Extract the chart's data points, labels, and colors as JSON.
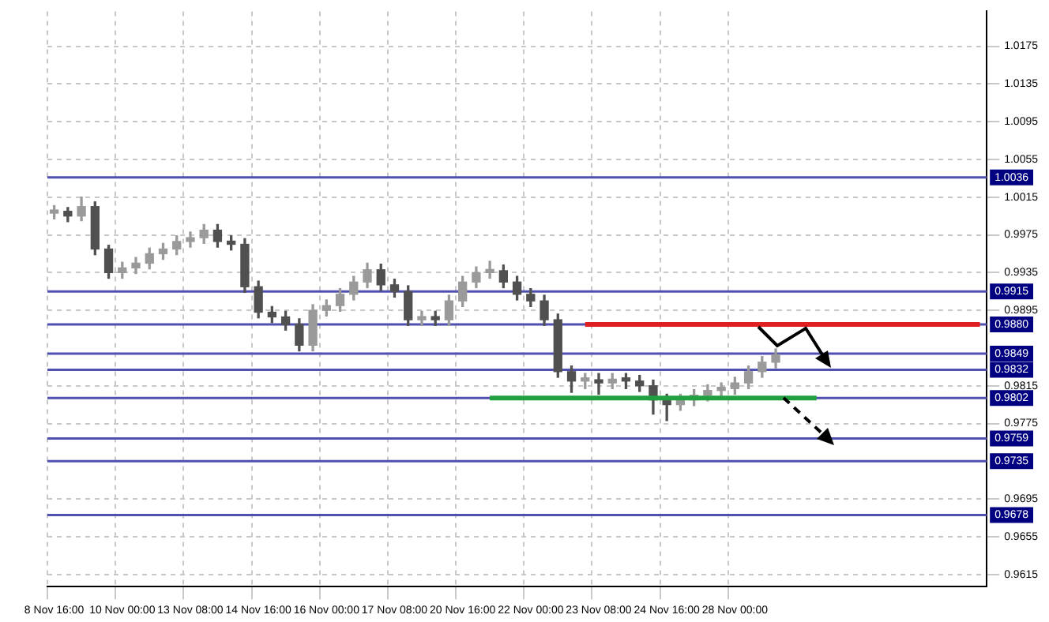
{
  "chart_data": {
    "type": "candlestick",
    "categories": [
      "8 Nov 16:00",
      null,
      null,
      null,
      null,
      "10 Nov 00:00",
      null,
      null,
      null,
      null,
      "13 Nov 08:00",
      null,
      null,
      null,
      null,
      "14 Nov 16:00",
      null,
      null,
      null,
      null,
      "16 Nov 00:00",
      null,
      null,
      null,
      null,
      "17 Nov 08:00",
      null,
      null,
      null,
      null,
      "20 Nov 16:00",
      null,
      null,
      null,
      null,
      "22 Nov 00:00",
      null,
      null,
      null,
      null,
      "23 Nov 08:00",
      null,
      null,
      null,
      null,
      "24 Nov 16:00",
      null,
      null,
      null,
      null,
      "28 Nov 00:00",
      null,
      null,
      null,
      null,
      null,
      null,
      null,
      null,
      null,
      null,
      null,
      null,
      null,
      null,
      null,
      null,
      null,
      null
    ],
    "ohlc": [
      [
        0.9998,
        1.0006,
        0.9992,
        1.0
      ],
      [
        1.0,
        1.0004,
        0.9989,
        0.9995
      ],
      [
        0.9995,
        1.0015,
        0.999,
        1.0005
      ],
      [
        1.0005,
        1.001,
        0.9954,
        0.996
      ],
      [
        0.996,
        0.9964,
        0.9929,
        0.9935
      ],
      [
        0.9935,
        0.9946,
        0.9929,
        0.994
      ],
      [
        0.994,
        0.9951,
        0.9934,
        0.9945
      ],
      [
        0.9945,
        0.9961,
        0.9939,
        0.9955
      ],
      [
        0.9955,
        0.9966,
        0.9949,
        0.996
      ],
      [
        0.996,
        0.9974,
        0.9954,
        0.9968
      ],
      [
        0.9968,
        0.9978,
        0.9962,
        0.9972
      ],
      [
        0.9972,
        0.9986,
        0.9966,
        0.998
      ],
      [
        0.998,
        0.9986,
        0.9962,
        0.9968
      ],
      [
        0.9968,
        0.9974,
        0.9959,
        0.9965
      ],
      [
        0.9965,
        0.9971,
        0.9914,
        0.992
      ],
      [
        0.992,
        0.9926,
        0.9887,
        0.9893
      ],
      [
        0.9893,
        0.9899,
        0.9882,
        0.9888
      ],
      [
        0.9888,
        0.9894,
        0.9874,
        0.988
      ],
      [
        0.988,
        0.9886,
        0.9852,
        0.9858
      ],
      [
        0.9858,
        0.9901,
        0.9852,
        0.9895
      ],
      [
        0.9895,
        0.9906,
        0.9889,
        0.99
      ],
      [
        0.99,
        0.9918,
        0.9894,
        0.9912
      ],
      [
        0.9912,
        0.9931,
        0.9906,
        0.9925
      ],
      [
        0.9925,
        0.9945,
        0.9919,
        0.9938
      ],
      [
        0.9938,
        0.9944,
        0.9916,
        0.9922
      ],
      [
        0.9922,
        0.9928,
        0.9909,
        0.9915
      ],
      [
        0.9915,
        0.9921,
        0.9879,
        0.9885
      ],
      [
        0.9885,
        0.9894,
        0.9879,
        0.9888
      ],
      [
        0.9888,
        0.9894,
        0.9879,
        0.9885
      ],
      [
        0.9885,
        0.9911,
        0.9879,
        0.9905
      ],
      [
        0.9905,
        0.9931,
        0.9899,
        0.9925
      ],
      [
        0.9925,
        0.9941,
        0.9919,
        0.9935
      ],
      [
        0.9935,
        0.9947,
        0.9929,
        0.9937
      ],
      [
        0.9937,
        0.9943,
        0.9919,
        0.9925
      ],
      [
        0.9925,
        0.9931,
        0.9906,
        0.9912
      ],
      [
        0.9912,
        0.9918,
        0.9899,
        0.9905
      ],
      [
        0.9905,
        0.9911,
        0.9879,
        0.9885
      ],
      [
        0.9885,
        0.9891,
        0.9824,
        0.983
      ],
      [
        0.983,
        0.9836,
        0.9808,
        0.982
      ],
      [
        0.982,
        0.9828,
        0.9812,
        0.9822
      ],
      [
        0.982,
        0.9828,
        0.9806,
        0.9818
      ],
      [
        0.9818,
        0.9828,
        0.9812,
        0.9822
      ],
      [
        0.9822,
        0.9828,
        0.9812,
        0.982
      ],
      [
        0.982,
        0.9826,
        0.9809,
        0.9815
      ],
      [
        0.9815,
        0.9821,
        0.9785,
        0.98
      ],
      [
        0.98,
        0.9806,
        0.9778,
        0.9795
      ],
      [
        0.9795,
        0.9806,
        0.9789,
        0.98
      ],
      [
        0.98,
        0.9811,
        0.9794,
        0.9805
      ],
      [
        0.9805,
        0.9816,
        0.9799,
        0.981
      ],
      [
        0.981,
        0.9818,
        0.9804,
        0.9812
      ],
      [
        0.9812,
        0.9824,
        0.9806,
        0.9818
      ],
      [
        0.9818,
        0.9836,
        0.9812,
        0.983
      ],
      [
        0.983,
        0.9846,
        0.9824,
        0.984
      ],
      [
        0.984,
        0.9854,
        0.9834,
        0.9848
      ],
      null,
      null,
      null,
      null,
      null,
      null,
      null,
      null,
      null,
      null,
      null,
      null,
      null,
      null,
      null
    ],
    "series": [
      {
        "type": "line",
        "color": "#e02020",
        "values": [
          null,
          null,
          null,
          null,
          null,
          null,
          null,
          null,
          null,
          null,
          null,
          null,
          null,
          null,
          null,
          null,
          null,
          null,
          null,
          null,
          null,
          null,
          null,
          null,
          null,
          null,
          null,
          null,
          null,
          null,
          null,
          null,
          null,
          null,
          null,
          null,
          null,
          null,
          null,
          0.988,
          0.988,
          0.988,
          0.988,
          0.988,
          0.988,
          0.988,
          0.988,
          0.988,
          0.988,
          0.988,
          0.988,
          0.988,
          0.988,
          0.988,
          0.988,
          0.988,
          0.988,
          0.988,
          0.988,
          0.988,
          0.988,
          0.988,
          0.988,
          0.988,
          0.988,
          0.988,
          0.988,
          0.988,
          0.988
        ]
      },
      {
        "type": "line",
        "color": "#20a040",
        "values": [
          null,
          null,
          null,
          null,
          null,
          null,
          null,
          null,
          null,
          null,
          null,
          null,
          null,
          null,
          null,
          null,
          null,
          null,
          null,
          null,
          null,
          null,
          null,
          null,
          null,
          null,
          null,
          null,
          null,
          null,
          null,
          null,
          0.9802,
          0.9802,
          0.9802,
          0.9802,
          0.9802,
          0.9802,
          0.9802,
          0.9802,
          0.9802,
          0.9802,
          0.9802,
          0.9802,
          0.9802,
          0.9802,
          0.9802,
          0.9802,
          0.9802,
          0.9802,
          0.9802,
          0.9802,
          0.9802,
          0.9802,
          0.9802,
          0.9802,
          0.9802,
          null,
          null,
          null,
          null,
          null,
          null,
          null,
          null,
          null,
          null,
          null,
          null
        ]
      }
    ],
    "colors": [
      "#9a9a9a",
      "#505050",
      "#9a9a9a",
      "#505050",
      "#505050",
      "#9a9a9a",
      "#9a9a9a",
      "#9a9a9a",
      "#9a9a9a",
      "#9a9a9a",
      "#9a9a9a",
      "#9a9a9a",
      "#505050",
      "#505050",
      "#505050",
      "#505050",
      "#505050",
      "#505050",
      "#505050",
      "#9a9a9a",
      "#9a9a9a",
      "#9a9a9a",
      "#9a9a9a",
      "#9a9a9a",
      "#505050",
      "#505050",
      "#505050",
      "#9a9a9a",
      "#505050",
      "#9a9a9a",
      "#9a9a9a",
      "#9a9a9a",
      "#9a9a9a",
      "#505050",
      "#505050",
      "#505050",
      "#505050",
      "#505050",
      "#505050",
      "#9a9a9a",
      "#505050",
      "#9a9a9a",
      "#505050",
      "#505050",
      "#505050",
      "#505050",
      "#9a9a9a",
      "#9a9a9a",
      "#9a9a9a",
      "#9a9a9a",
      "#9a9a9a",
      "#9a9a9a",
      "#9a9a9a",
      "#9a9a9a",
      null,
      null,
      null,
      null,
      null,
      null,
      null,
      null,
      null,
      null,
      null,
      null,
      null,
      null,
      null
    ],
    "ylim": [
      0.9602,
      1.0212
    ],
    "yticks": [
      0.9615,
      0.9655,
      0.9695,
      0.9775,
      0.9815,
      0.9895,
      0.9935,
      0.9975,
      1.0015,
      1.0055,
      1.0095,
      1.0135,
      1.0175
    ],
    "ref_lines": [
      {
        "axis": "y",
        "value": 1.0036,
        "label": "1.0036",
        "color": "#5050b0"
      },
      {
        "axis": "y",
        "value": 0.9915,
        "label": "0.9915",
        "color": "#5050b0"
      },
      {
        "axis": "y",
        "value": 0.988,
        "label": "0.9880",
        "color": "#5050b0"
      },
      {
        "axis": "y",
        "value": 0.9849,
        "label": "0.9849",
        "color": "#5050b0"
      },
      {
        "axis": "y",
        "value": 0.9832,
        "label": "0.9832",
        "color": "#5050b0"
      },
      {
        "axis": "y",
        "value": 0.9802,
        "label": "0.9802",
        "color": "#5050b0"
      },
      {
        "axis": "y",
        "value": 0.9759,
        "label": "0.9759",
        "color": "#5050b0"
      },
      {
        "axis": "y",
        "value": 0.9735,
        "label": "0.9735",
        "color": "#5050b0"
      },
      {
        "axis": "y",
        "value": 0.9678,
        "label": "0.9678",
        "color": "#5050b0"
      }
    ],
    "grid": true,
    "legend": false
  }
}
